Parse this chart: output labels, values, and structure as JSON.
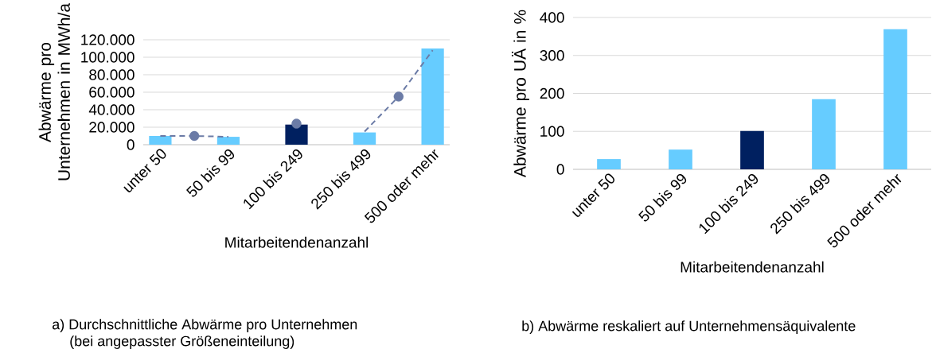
{
  "chart_data": [
    {
      "type": "bar",
      "categories": [
        "unter 50",
        null,
        "50 bis 99",
        null,
        "100 bis 249",
        null,
        "250 bis 499",
        null,
        "500 oder mehr"
      ],
      "series": [
        {
          "colors": [
            "#66ccff",
            null,
            "#66ccff",
            null,
            "#002060",
            null,
            "#66ccff",
            null,
            "#66ccff"
          ],
          "values": [
            10000,
            null,
            9000,
            null,
            23000,
            null,
            14000,
            null,
            110000
          ]
        },
        {
          "type": "line",
          "values": [
            10000,
            10000,
            9000,
            null,
            null,
            null,
            null,
            null,
            null
          ],
          "color": "#6b7ba6",
          "line_style": "dashed",
          "marker": "none"
        },
        {
          "type": "line",
          "values": [
            null,
            null,
            null,
            null,
            null,
            null,
            15000,
            55000,
            108000
          ],
          "color": "#6b7ba6",
          "line_style": "dashed",
          "marker": "none"
        },
        {
          "type": "scatter",
          "values": [
            null,
            10000,
            null,
            null,
            24000,
            null,
            null,
            55000,
            null
          ],
          "color": "#6b7ba6",
          "marker": "circle"
        }
      ],
      "ylim": [
        0,
        120000
      ],
      "yticks": [
        {
          "value": 0,
          "label": "0"
        },
        {
          "value": 20000,
          "label": "20.000"
        },
        {
          "value": 40000,
          "label": "40.000"
        },
        {
          "value": 60000,
          "label": "60.000"
        },
        {
          "value": 80000,
          "label": "80.000"
        },
        {
          "value": 100000,
          "label": "100.000"
        },
        {
          "value": 120000,
          "label": "120.000"
        }
      ],
      "ylabel": "Abwärme pro Unternehmen in MWh/a",
      "xlabel": "Mitarbeitendenanzahl",
      "grid": "y",
      "annotations": [
        "a)  Durchschnittliche Abwärme pro Unternehmen",
        "(bei angepasster Größeneinteilung)"
      ]
    },
    {
      "type": "bar",
      "categories": [
        "unter 50",
        "50 bis 99",
        "100 bis 249",
        "250 bis 499",
        "500 oder mehr"
      ],
      "series": [
        {
          "colors": [
            "#66ccff",
            "#66ccff",
            "#002060",
            "#66ccff",
            "#66ccff"
          ],
          "values": [
            27,
            52,
            101,
            185,
            369
          ]
        }
      ],
      "ylim": [
        0,
        400
      ],
      "yticks": [
        0,
        100,
        200,
        300,
        400
      ],
      "ylabel": "Abwärme pro UÄ in %",
      "xlabel": "Mitarbeitendenanzahl",
      "grid": "y",
      "annotations": [
        "b)  Abwärme reskaliert auf Unternehmensäquivalente"
      ]
    }
  ]
}
